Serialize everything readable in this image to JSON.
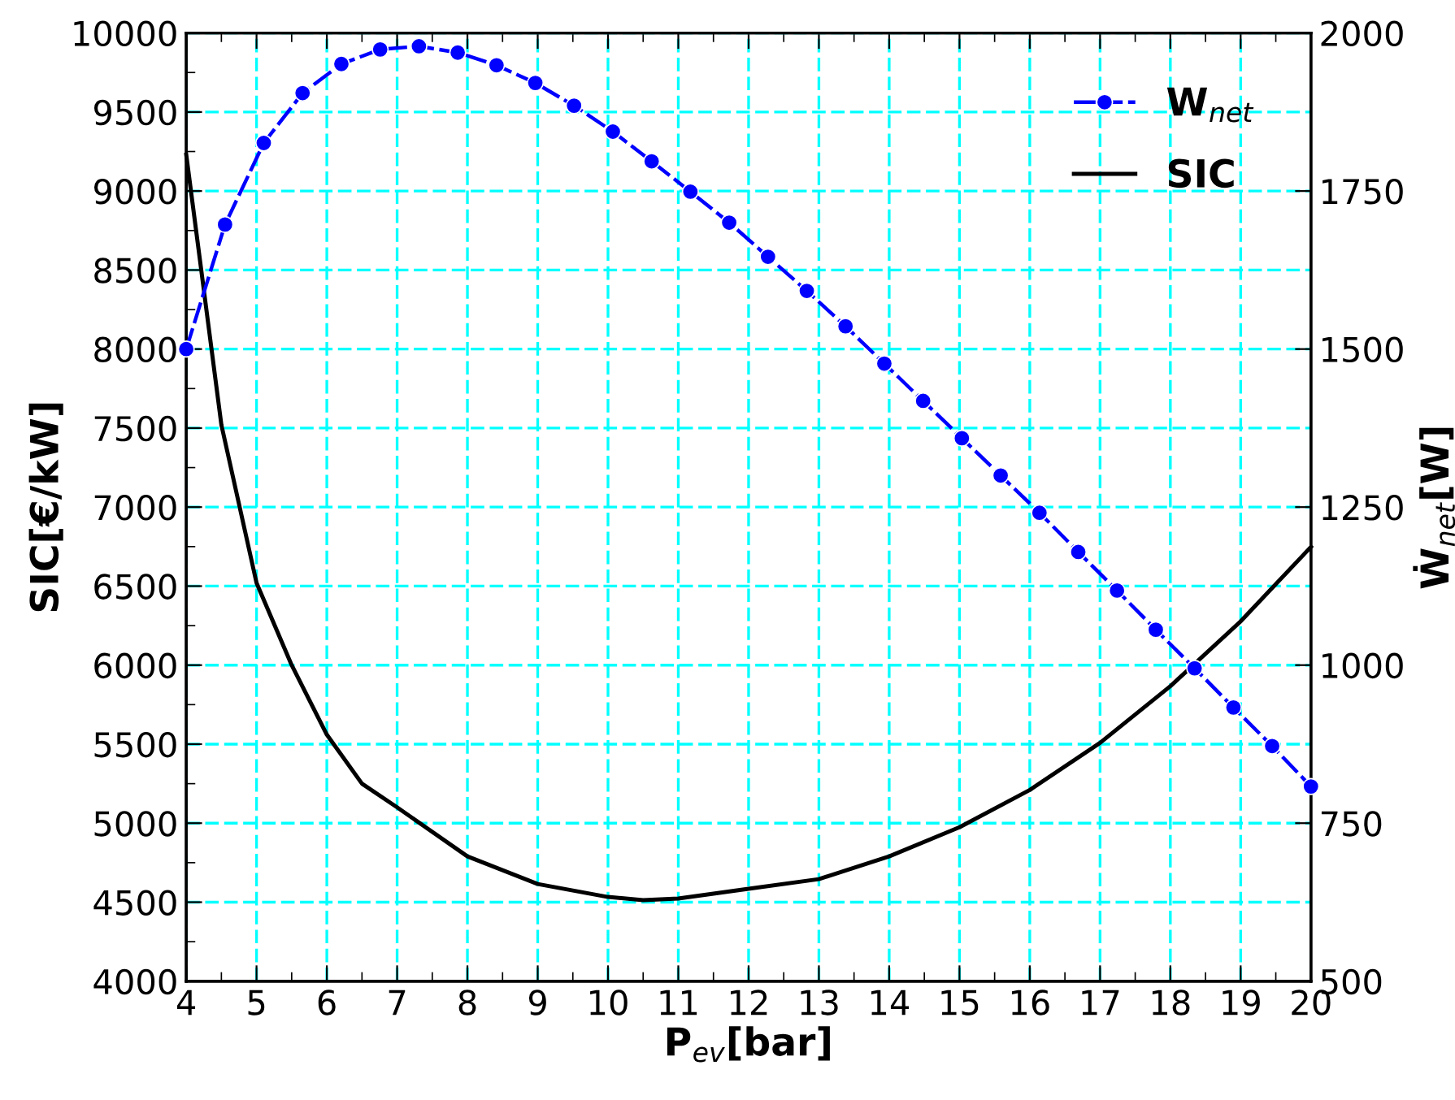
{
  "chart_data": {
    "type": "line",
    "xlabel": "P$_{ev}$[bar]",
    "ylabel": "SIC[€/kW]",
    "y2label": "Ẇ$_{net}$[W]",
    "xlim": [
      4,
      20
    ],
    "xticks": [
      4,
      {
        "value": 4.5,
        "label": null
      },
      5,
      {
        "value": 5.5,
        "label": null
      },
      6,
      {
        "value": 6.5,
        "label": null
      },
      7,
      {
        "value": 7.5,
        "label": null
      },
      8,
      {
        "value": 8.5,
        "label": null
      },
      9,
      {
        "value": 9.5,
        "label": null
      },
      10,
      {
        "value": 10.5,
        "label": null
      },
      11,
      {
        "value": 11.5,
        "label": null
      },
      12,
      {
        "value": 12.5,
        "label": null
      },
      13,
      {
        "value": 13.5,
        "label": null
      },
      14,
      {
        "value": 14.5,
        "label": null
      },
      15,
      {
        "value": 15.5,
        "label": null
      },
      16,
      {
        "value": 16.5,
        "label": null
      },
      17,
      {
        "value": 17.5,
        "label": null
      },
      18,
      {
        "value": 18.5,
        "label": null
      },
      19,
      {
        "value": 19.5,
        "label": null
      },
      20
    ],
    "ylim": [
      4000,
      10000
    ],
    "yticks": [
      4000,
      {
        "value": 4250,
        "label": null
      },
      4500,
      {
        "value": 4750,
        "label": null
      },
      5000,
      {
        "value": 5250,
        "label": null
      },
      5500,
      {
        "value": 5750,
        "label": null
      },
      6000,
      {
        "value": 6250,
        "label": null
      },
      6500,
      {
        "value": 6750,
        "label": null
      },
      7000,
      {
        "value": 7250,
        "label": null
      },
      7500,
      {
        "value": 7750,
        "label": null
      },
      8000,
      {
        "value": 8250,
        "label": null
      },
      8500,
      {
        "value": 8750,
        "label": null
      },
      9000,
      {
        "value": 9250,
        "label": null
      },
      9500,
      {
        "value": 9750,
        "label": null
      },
      10000
    ],
    "y2lim": [
      500,
      2000
    ],
    "y2ticks": [
      500,
      750,
      1000,
      1250,
      1500,
      1750,
      2000
    ],
    "grid": true,
    "legend": "top right",
    "series": [
      {
        "name": "W$_{net}$",
        "color": "#0000ff",
        "axis": "y2",
        "marker": "circle",
        "line_style": "dashed",
        "x": [
          4,
          4.552,
          5.103,
          5.655,
          6.207,
          6.759,
          7.31,
          7.862,
          8.414,
          8.966,
          9.517,
          10.069,
          10.621,
          11.172,
          11.724,
          12.276,
          12.828,
          13.379,
          13.931,
          14.483,
          15.034,
          15.586,
          16.138,
          16.69,
          17.241,
          17.793,
          18.345,
          18.897,
          19.448,
          20
        ],
        "values": [
          1500,
          1697,
          1826,
          1905,
          1951,
          1974,
          1979,
          1969,
          1949,
          1921,
          1885,
          1844,
          1797,
          1749,
          1700,
          1646,
          1592,
          1536,
          1477,
          1418,
          1359,
          1300,
          1241,
          1179,
          1118,
          1056,
          995,
          933,
          872,
          808
        ]
      },
      {
        "name": "SIC",
        "color": "#000000",
        "marker": "none",
        "line_style": "solid",
        "x": [
          4,
          4.5,
          5,
          5.5,
          6,
          6.5,
          7,
          8,
          9,
          10,
          10.5,
          11,
          12,
          13,
          14,
          15,
          16,
          17,
          18,
          19,
          20
        ],
        "values": [
          9230,
          7520,
          6520,
          6000,
          5560,
          5250,
          5100,
          4790,
          4615,
          4533,
          4513,
          4523,
          4585,
          4646,
          4790,
          4974,
          5210,
          5508,
          5867,
          6277,
          6748
        ]
      }
    ]
  }
}
